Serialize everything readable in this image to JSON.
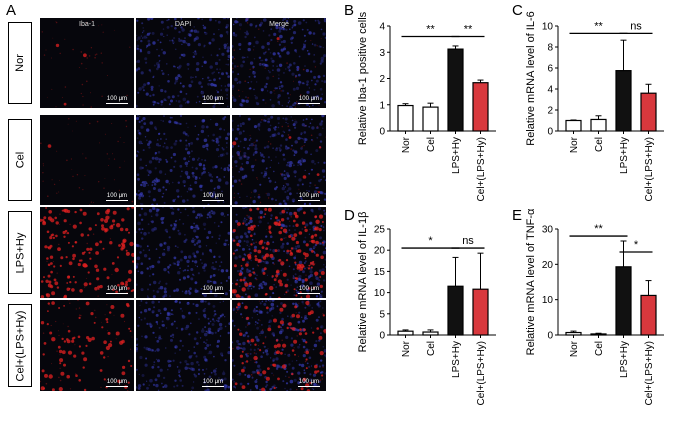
{
  "panel_a": {
    "letter": "A",
    "channels": [
      "Iba-1",
      "DAPI",
      "Merge"
    ],
    "rows": [
      "Nor",
      "Cel",
      "LPS+Hy",
      "Cel+(LPS+Hy)"
    ],
    "scale_label": "100 μm",
    "colors": {
      "iba1": "#e02020",
      "dapi": "#3a3fbf",
      "background": "#06060c"
    }
  },
  "chart_data": [
    {
      "panel": "B",
      "type": "bar",
      "ylabel": "Relative Iba-1 positive cells",
      "categories": [
        "Nor",
        "Cel",
        "LPS+Hy",
        "Cel+(LPS+Hy)"
      ],
      "values": [
        0.97,
        0.91,
        3.12,
        1.84
      ],
      "errors": [
        0.07,
        0.15,
        0.12,
        0.1
      ],
      "ylim": [
        0,
        4
      ],
      "yticks": [
        "0",
        "1",
        "2",
        "3",
        "4"
      ],
      "ytick_values": [
        0,
        1,
        2,
        3,
        4
      ],
      "fills": [
        "#ffffff",
        "#ffffff",
        "#111111",
        "#d8383d"
      ],
      "sig": [
        {
          "from": 0,
          "to": 2,
          "label": "**"
        },
        {
          "from": 2,
          "to": 3,
          "label": "**"
        }
      ],
      "sig_levels": [
        3.6,
        3.6
      ]
    },
    {
      "panel": "C",
      "type": "bar",
      "ylabel": "Relative mRNA level of IL-6",
      "categories": [
        "Nor",
        "Cel",
        "LPS+Hy",
        "Cel+(LPS+Hy)"
      ],
      "values": [
        1.0,
        1.1,
        5.75,
        3.6
      ],
      "errors": [
        0.05,
        0.35,
        2.9,
        0.85
      ],
      "ylim": [
        0,
        10
      ],
      "yticks": [
        "0",
        "2",
        "4",
        "6",
        "8",
        "10"
      ],
      "ytick_values": [
        0,
        2,
        4,
        6,
        8,
        10
      ],
      "fills": [
        "#ffffff",
        "#ffffff",
        "#111111",
        "#d8383d"
      ],
      "sig": [
        {
          "from": 0,
          "to": 2,
          "label": "**"
        },
        {
          "from": 2,
          "to": 3,
          "label": "ns"
        }
      ],
      "sig_levels": [
        9.3,
        9.3
      ]
    },
    {
      "panel": "D",
      "type": "bar",
      "ylabel": "Relative mRNA level of IL-1β",
      "categories": [
        "Nor",
        "Cel",
        "LPS+Hy",
        "Cel+(LPS+Hy)"
      ],
      "values": [
        0.9,
        0.7,
        11.5,
        10.8
      ],
      "errors": [
        0.3,
        0.5,
        6.8,
        8.5
      ],
      "ylim": [
        0,
        25
      ],
      "yticks": [
        "0",
        "5",
        "10",
        "15",
        "20",
        "25"
      ],
      "ytick_values": [
        0,
        5,
        10,
        15,
        20,
        25
      ],
      "fills": [
        "#ffffff",
        "#ffffff",
        "#111111",
        "#d8383d"
      ],
      "sig": [
        {
          "from": 0,
          "to": 2,
          "label": "*"
        },
        {
          "from": 2,
          "to": 3,
          "label": "ns"
        }
      ],
      "sig_levels": [
        20.5,
        20.5
      ]
    },
    {
      "panel": "E",
      "type": "bar",
      "ylabel": "Relative mRNA level of TNF-α",
      "categories": [
        "Nor",
        "Cel",
        "LPS+Hy",
        "Cel+(LPS+Hy)"
      ],
      "values": [
        0.7,
        0.3,
        19.3,
        11.2
      ],
      "errors": [
        0.4,
        0.2,
        7.3,
        4.2
      ],
      "ylim": [
        0,
        30
      ],
      "yticks": [
        "0",
        "10",
        "20",
        "30"
      ],
      "ytick_values": [
        0,
        10,
        20,
        30
      ],
      "fills": [
        "#ffffff",
        "#ffffff",
        "#111111",
        "#d8383d"
      ],
      "sig": [
        {
          "from": 0,
          "to": 2,
          "label": "**"
        },
        {
          "from": 2,
          "to": 3,
          "label": "*"
        }
      ],
      "sig_levels": [
        28.0,
        23.5
      ]
    }
  ]
}
